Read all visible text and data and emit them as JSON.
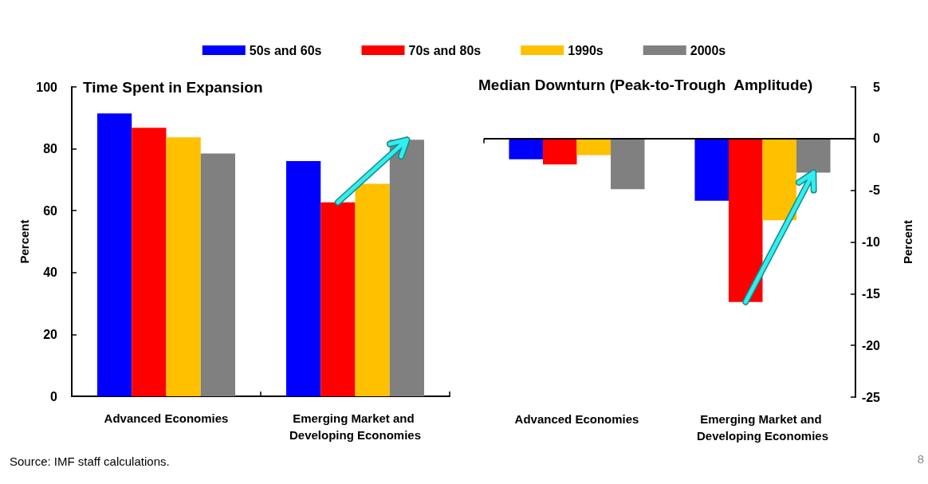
{
  "chart_data": [
    {
      "type": "bar",
      "title": "Time Spent in Expansion",
      "ylabel": "Percent",
      "categories": [
        "Advanced Economies",
        "Emerging Market and Developing Economies"
      ],
      "series": [
        {
          "name": "50s and 60s",
          "color": "#0000ff",
          "values": [
            91.4,
            76.0
          ]
        },
        {
          "name": "70s and 80s",
          "color": "#ff0000",
          "values": [
            86.8,
            62.7
          ]
        },
        {
          "name": "1990s",
          "color": "#ffc000",
          "values": [
            83.7,
            68.7
          ]
        },
        {
          "name": "2000s",
          "color": "#808080",
          "values": [
            78.5,
            82.9
          ]
        }
      ],
      "ylim": [
        0,
        100
      ],
      "yticks": [
        0,
        20,
        40,
        60,
        80,
        100
      ],
      "grid": false,
      "legend": "top",
      "annotations": [
        "Source: IMF staff calculations.",
        "8"
      ]
    },
    {
      "type": "bar",
      "title": "Median Downturn (Peak-to-Trough  Amplitude)",
      "y2label": "Percent",
      "categories": [
        "Advanced Economies",
        "Emerging Market and Developing Economies"
      ],
      "series": [
        {
          "name": "50s and 60s",
          "color": "#0000ff",
          "axis": "y2",
          "values": [
            -2.0,
            -6.0
          ]
        },
        {
          "name": "70s and 80s",
          "color": "#ff0000",
          "axis": "y2",
          "values": [
            -2.5,
            -15.8
          ]
        },
        {
          "name": "1990s",
          "color": "#ffc000",
          "axis": "y2",
          "values": [
            -1.6,
            -7.9
          ]
        },
        {
          "name": "2000s",
          "color": "#808080",
          "axis": "y2",
          "values": [
            -4.9,
            -3.3
          ]
        }
      ],
      "y2lim": [
        -25,
        5
      ],
      "y2ticks": [
        -25,
        -20,
        -15,
        -10,
        -5,
        0,
        5
      ],
      "grid": false,
      "ref_lines": [
        {
          "axis": "y2",
          "value": 0,
          "color": "#000000",
          "line_style": "solid"
        }
      ]
    }
  ]
}
